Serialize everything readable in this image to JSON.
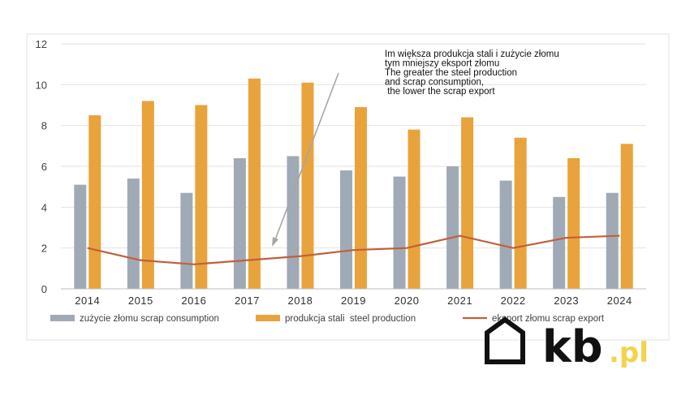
{
  "chart_data": {
    "type": "bar",
    "categories": [
      "2014",
      "2015",
      "2016",
      "2017",
      "2018",
      "2019",
      "2020",
      "2021",
      "2022",
      "2023",
      "2024"
    ],
    "series": [
      {
        "name": "zużycie złomu scrap consumption",
        "kind": "bar",
        "color": "#a0aab6",
        "values": [
          5.1,
          5.4,
          4.7,
          6.4,
          6.5,
          5.8,
          5.5,
          6.0,
          5.3,
          4.5,
          4.7
        ]
      },
      {
        "name": "produkcja stali  steel production",
        "kind": "bar",
        "color": "#e8a33c",
        "values": [
          8.5,
          9.2,
          9.0,
          10.3,
          10.1,
          8.9,
          7.8,
          8.4,
          7.4,
          6.4,
          7.1
        ]
      },
      {
        "name": "eksport złomu scrap export",
        "kind": "line",
        "color": "#c0603a",
        "values": [
          2.0,
          1.4,
          1.2,
          1.4,
          1.6,
          1.9,
          2.0,
          2.6,
          2.0,
          2.5,
          2.6
        ]
      }
    ],
    "yticks": [
      "0",
      "2",
      "4",
      "6",
      "8",
      "10",
      "12"
    ],
    "ylim": [
      0,
      12
    ],
    "grid": true,
    "legend_position": "bottom",
    "annotation_lines": [
      "Im większa produkcja stali i zużycie złomu",
      "tym mniejszy eksport złomu",
      "The greater the steel production",
      "and scrap consumption,",
      " the lower the scrap export"
    ]
  },
  "logo": {
    "text_main": "kb",
    "text_suffix": ".pl",
    "color_main": "#111111",
    "color_suffix": "#f3d34a"
  }
}
